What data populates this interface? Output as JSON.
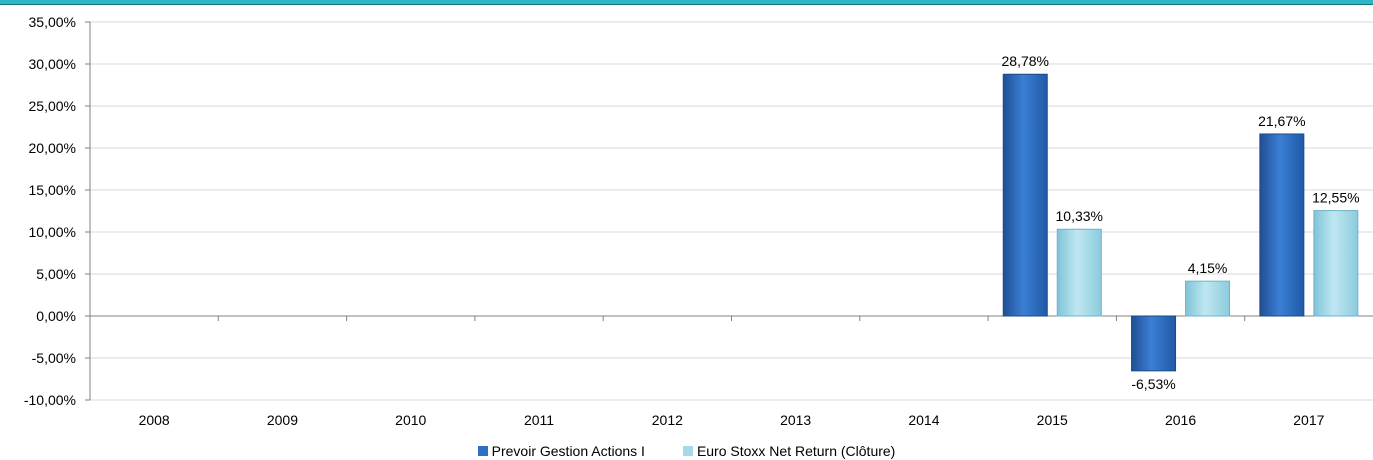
{
  "chart_data": {
    "type": "bar",
    "categories": [
      "2008",
      "2009",
      "2010",
      "2011",
      "2012",
      "2013",
      "2014",
      "2015",
      "2016",
      "2017"
    ],
    "series": [
      {
        "name": "Prevoir Gestion Actions I",
        "color": "#2f6fc3",
        "values": [
          null,
          null,
          null,
          null,
          null,
          null,
          null,
          28.78,
          -6.53,
          21.67
        ],
        "labels": [
          "",
          "",
          "",
          "",
          "",
          "",
          "",
          "28,78%",
          "-6,53%",
          "21,67%"
        ]
      },
      {
        "name": "Euro Stoxx Net Return (Clôture)",
        "color": "#a6d9e8",
        "values": [
          null,
          null,
          null,
          null,
          null,
          null,
          null,
          10.33,
          4.15,
          12.55
        ],
        "labels": [
          "",
          "",
          "",
          "",
          "",
          "",
          "",
          "10,33%",
          "4,15%",
          "12,55%"
        ]
      }
    ],
    "ylim": [
      -10,
      35
    ],
    "yticks": [
      35,
      30,
      25,
      20,
      15,
      10,
      5,
      0,
      -5,
      -10
    ],
    "ytick_labels": [
      "35,00%",
      "30,00%",
      "25,00%",
      "20,00%",
      "15,00%",
      "10,00%",
      "5,00%",
      "0,00%",
      "-5,00%",
      "-10,00%"
    ],
    "grid": true,
    "legend_position": "bottom"
  }
}
